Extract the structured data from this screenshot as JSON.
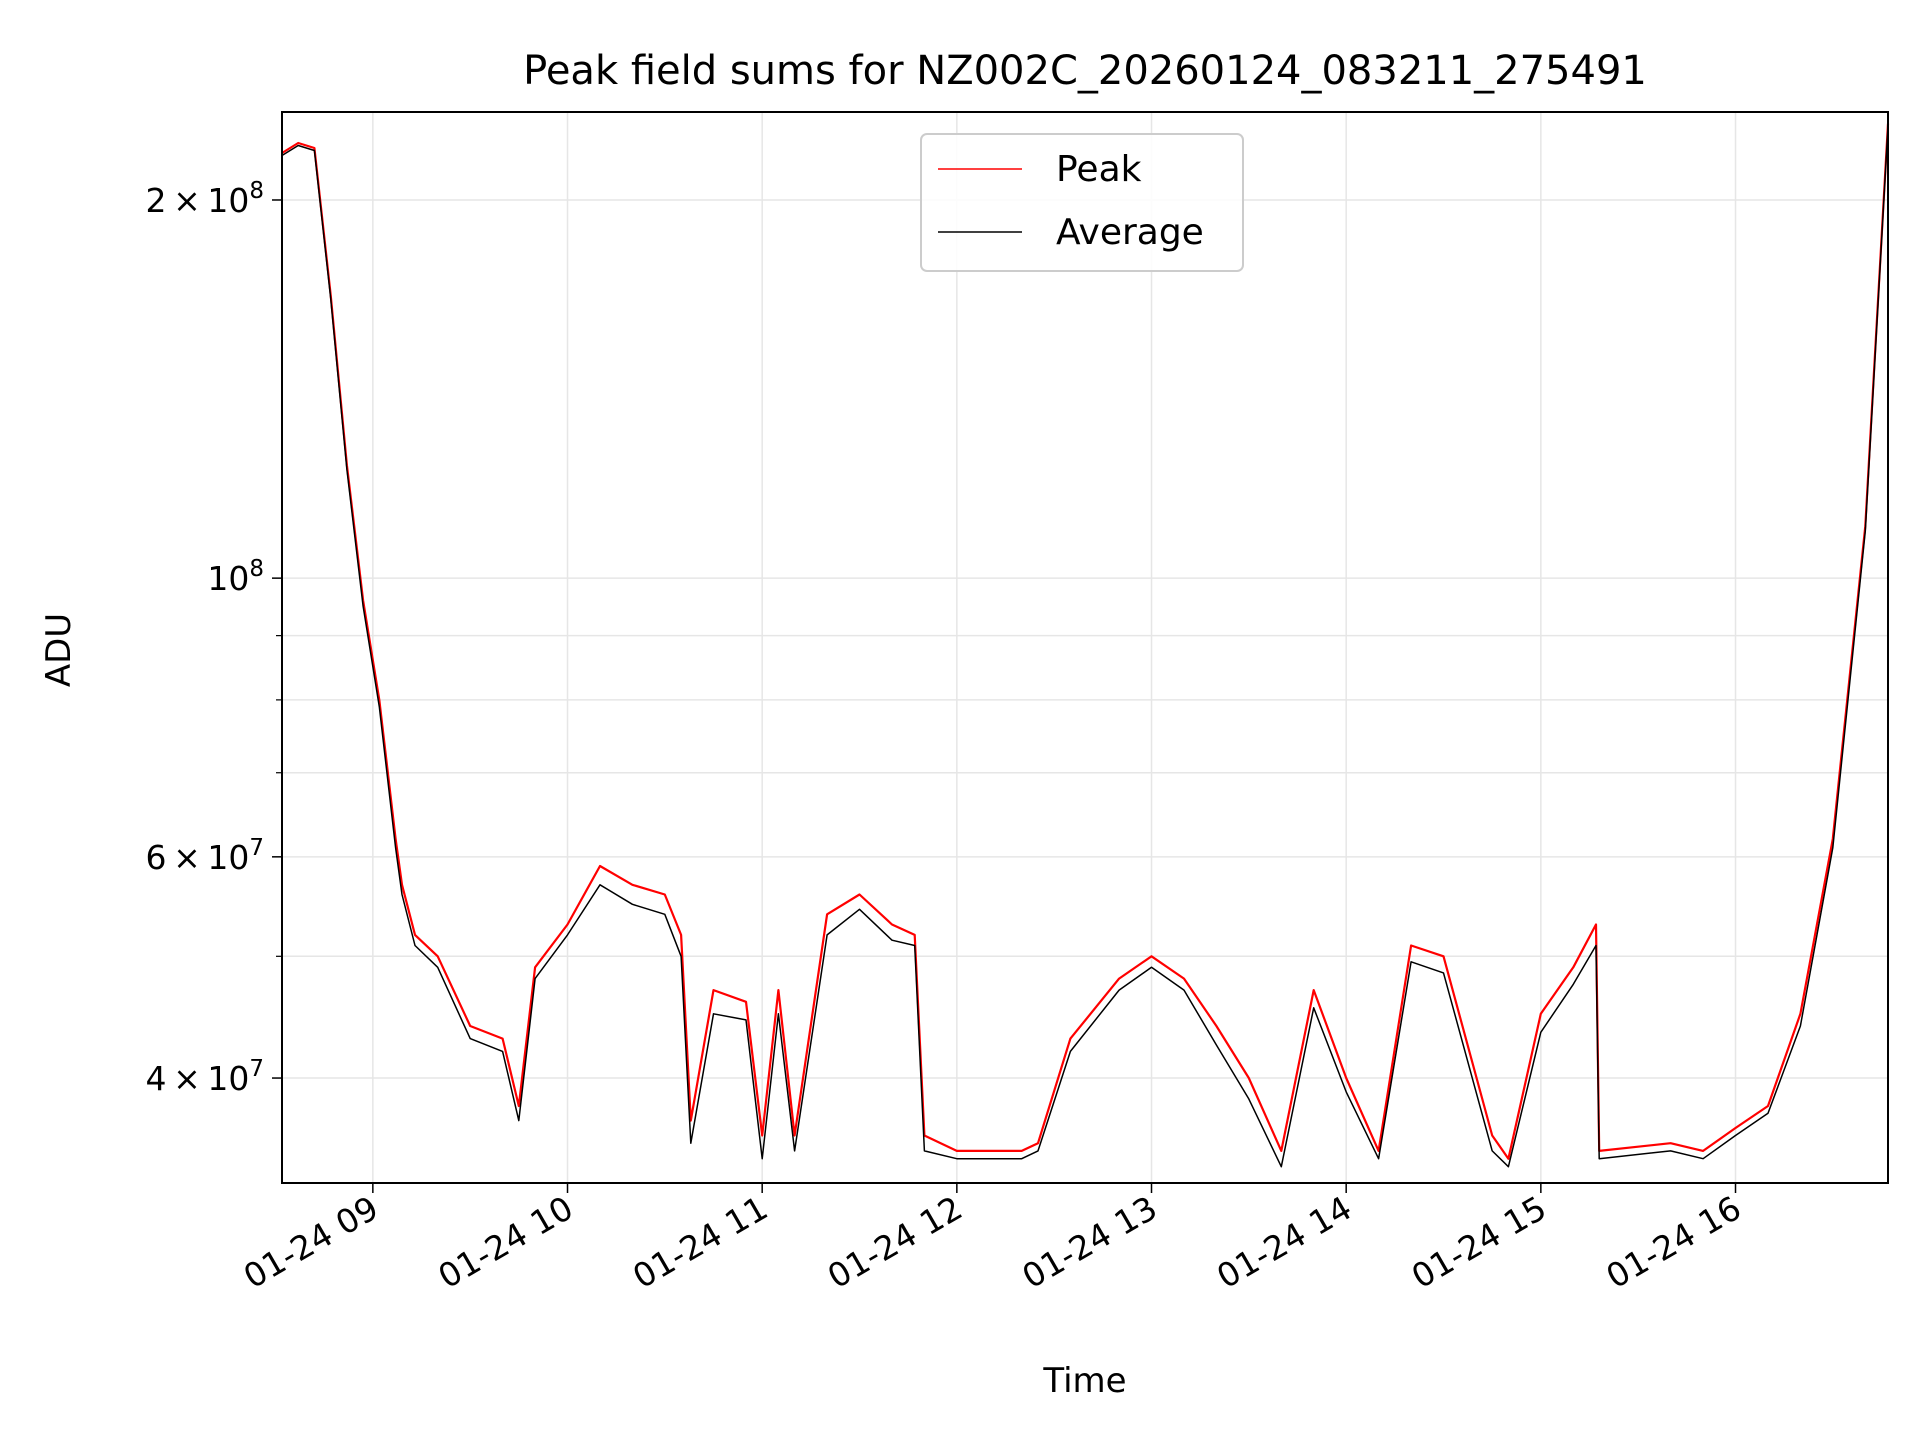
{
  "chart_data": {
    "type": "line",
    "title": "Peak field sums for NZ002C_20260124_083211_275491",
    "xlabel": "Time",
    "ylabel": "ADU",
    "yscale": "log",
    "grid": true,
    "legend_position": "upper-center",
    "xlim": [
      "2026-01-24 08:32",
      "2026-01-24 16:47"
    ],
    "ylim": [
      33000000,
      235000000
    ],
    "x_ticks": [
      "01-24 09",
      "01-24 10",
      "01-24 11",
      "01-24 12",
      "01-24 13",
      "01-24 14",
      "01-24 15",
      "01-24 16"
    ],
    "x_tick_hours": [
      9,
      10,
      11,
      12,
      13,
      14,
      15,
      16
    ],
    "y_major_ticks": [
      {
        "value": 40000000,
        "base": "4",
        "exp": "7"
      },
      {
        "value": 60000000,
        "base": "6",
        "exp": "7"
      },
      {
        "value": 100000000,
        "base": "",
        "exp": "8"
      },
      {
        "value": 200000000,
        "base": "2",
        "exp": "8"
      }
    ],
    "y_minor_ticks": [
      30000000,
      50000000,
      70000000,
      80000000,
      90000000
    ],
    "x": [
      "2026-01-24 08:32",
      "2026-01-24 08:37",
      "2026-01-24 08:42",
      "2026-01-24 08:47",
      "2026-01-24 08:52",
      "2026-01-24 08:57",
      "2026-01-24 09:02",
      "2026-01-24 09:07",
      "2026-01-24 09:09",
      "2026-01-24 09:13",
      "2026-01-24 09:20",
      "2026-01-24 09:30",
      "2026-01-24 09:40",
      "2026-01-24 09:45",
      "2026-01-24 09:50",
      "2026-01-24 10:00",
      "2026-01-24 10:10",
      "2026-01-24 10:20",
      "2026-01-24 10:30",
      "2026-01-24 10:35",
      "2026-01-24 10:38",
      "2026-01-24 10:45",
      "2026-01-24 10:55",
      "2026-01-24 11:00",
      "2026-01-24 11:05",
      "2026-01-24 11:10",
      "2026-01-24 11:20",
      "2026-01-24 11:30",
      "2026-01-24 11:40",
      "2026-01-24 11:47",
      "2026-01-24 11:50",
      "2026-01-24 12:00",
      "2026-01-24 12:20",
      "2026-01-24 12:25",
      "2026-01-24 12:35",
      "2026-01-24 12:50",
      "2026-01-24 13:00",
      "2026-01-24 13:10",
      "2026-01-24 13:20",
      "2026-01-24 13:30",
      "2026-01-24 13:40",
      "2026-01-24 13:50",
      "2026-01-24 14:00",
      "2026-01-24 14:10",
      "2026-01-24 14:20",
      "2026-01-24 14:30",
      "2026-01-24 14:45",
      "2026-01-24 14:50",
      "2026-01-24 15:00",
      "2026-01-24 15:10",
      "2026-01-24 15:17",
      "2026-01-24 15:18",
      "2026-01-24 15:40",
      "2026-01-24 15:50",
      "2026-01-24 16:00",
      "2026-01-24 16:10",
      "2026-01-24 16:20",
      "2026-01-24 16:30",
      "2026-01-24 16:40",
      "2026-01-24 16:47"
    ],
    "series": [
      {
        "name": "Peak",
        "color": "#ff0000",
        "values": [
          218000000,
          222000000,
          220000000,
          168000000,
          123000000,
          96000000,
          80000000,
          62000000,
          57000000,
          52000000,
          50000000,
          44000000,
          43000000,
          38000000,
          49000000,
          53000000,
          59000000,
          57000000,
          56000000,
          52000000,
          37000000,
          47000000,
          46000000,
          36000000,
          47000000,
          36000000,
          54000000,
          56000000,
          53000000,
          52000000,
          36000000,
          35000000,
          35000000,
          35500000,
          43000000,
          48000000,
          50000000,
          48000000,
          44000000,
          40000000,
          35000000,
          47000000,
          40000000,
          35000000,
          51000000,
          50000000,
          36000000,
          34500000,
          45000000,
          49000000,
          53000000,
          35000000,
          35500000,
          35000000,
          36500000,
          38000000,
          45000000,
          62000000,
          110000000,
          230000000
        ]
      },
      {
        "name": "Average",
        "color": "#000000",
        "values": [
          217000000,
          221000000,
          219000000,
          167000000,
          122000000,
          95000000,
          79000000,
          61000000,
          56000000,
          51000000,
          49000000,
          43000000,
          42000000,
          37000000,
          48000000,
          52000000,
          57000000,
          55000000,
          54000000,
          50000000,
          35500000,
          45000000,
          44500000,
          34500000,
          45000000,
          35000000,
          52000000,
          54500000,
          51500000,
          51000000,
          35000000,
          34500000,
          34500000,
          35000000,
          42000000,
          47000000,
          49000000,
          47000000,
          42500000,
          38500000,
          34000000,
          45500000,
          39000000,
          34500000,
          49500000,
          48500000,
          35000000,
          34000000,
          43500000,
          47500000,
          51000000,
          34500000,
          35000000,
          34500000,
          36000000,
          37500000,
          44000000,
          61000000,
          109000000,
          229000000
        ]
      }
    ]
  }
}
